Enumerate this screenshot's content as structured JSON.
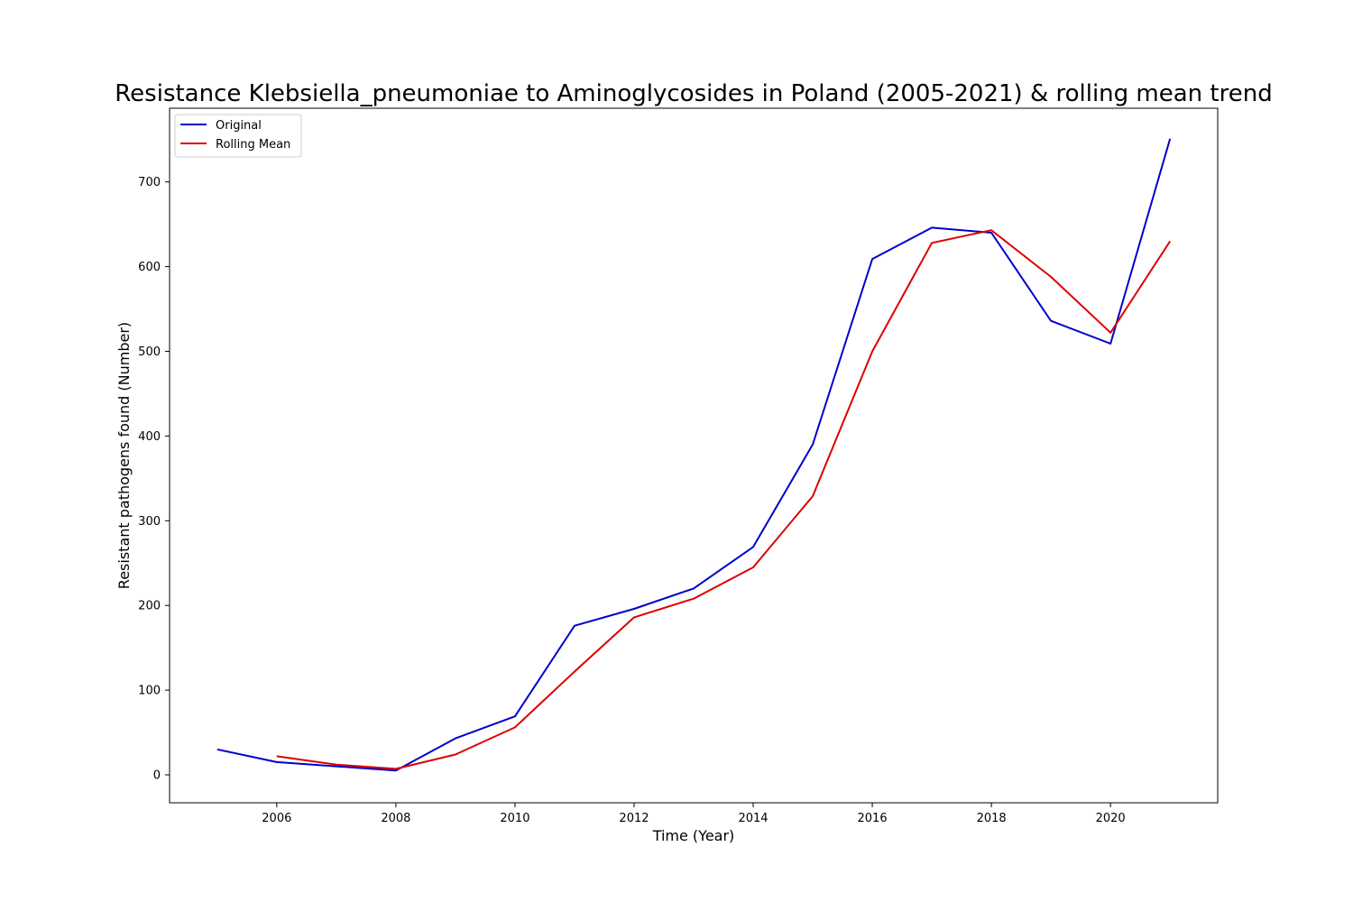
{
  "chart_data": {
    "type": "line",
    "title": "Resistance Klebsiella_pneumoniae to Aminoglycosides in Poland (2005-2021) & rolling mean trend",
    "xlabel": "Time (Year)",
    "ylabel": "Resistant pathogens found (Number)",
    "xlim": [
      2004.2,
      2021.8
    ],
    "ylim": [
      -33,
      787
    ],
    "xticks": [
      2006,
      2008,
      2010,
      2012,
      2014,
      2016,
      2018,
      2020
    ],
    "yticks": [
      0,
      100,
      200,
      300,
      400,
      500,
      600,
      700
    ],
    "grid": false,
    "legend_position": "upper-left",
    "series": [
      {
        "name": "Original",
        "color": "#0000cc",
        "x": [
          2005,
          2006,
          2007,
          2008,
          2009,
          2010,
          2011,
          2012,
          2013,
          2014,
          2015,
          2016,
          2017,
          2018,
          2019,
          2020,
          2021
        ],
        "values": [
          30,
          15,
          10,
          5,
          43,
          69,
          176,
          196,
          220,
          269,
          390,
          609,
          646,
          640,
          536,
          509,
          751
        ]
      },
      {
        "name": "Rolling Mean",
        "color": "#dd0000",
        "x": [
          2006,
          2007,
          2008,
          2009,
          2010,
          2011,
          2012,
          2013,
          2014,
          2015,
          2016,
          2017,
          2018,
          2019,
          2020,
          2021
        ],
        "values": [
          22,
          12,
          7,
          24,
          56,
          122,
          186,
          208,
          245,
          329,
          500,
          628,
          643,
          588,
          522,
          630
        ]
      }
    ]
  }
}
